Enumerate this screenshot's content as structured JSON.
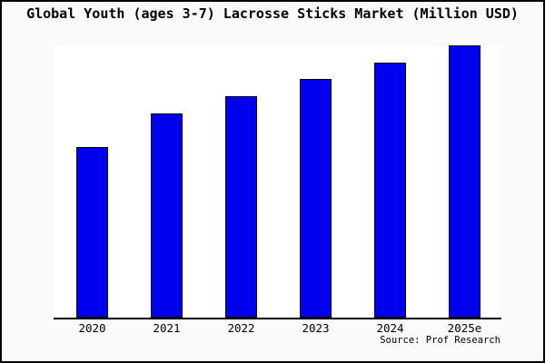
{
  "chart_data": {
    "type": "bar",
    "title": "Global Youth (ages 3-7) Lacrosse Sticks Market (Million USD)",
    "categories": [
      "2020",
      "2021",
      "2022",
      "2023",
      "2024",
      "2025e"
    ],
    "values": [
      62.8,
      75.1,
      81.4,
      87.7,
      93.7,
      100
    ],
    "value_basis": "relative estimate, tallest bar (2025e) = 100; no y-axis tick labels shown in chart",
    "xlabel": "",
    "ylabel": "",
    "ylim": [
      0,
      100
    ],
    "grid": false,
    "legend": false,
    "y_axis_visible": false
  },
  "source": {
    "label": "Source: Prof Research"
  },
  "colors": {
    "bar_fill": "#0000ee",
    "bar_border": "#000000",
    "figure_background": "#fafafa",
    "plot_background": "#ffffff",
    "axis_line": "#000000",
    "text": "#000000",
    "figure_border": "#000000"
  }
}
